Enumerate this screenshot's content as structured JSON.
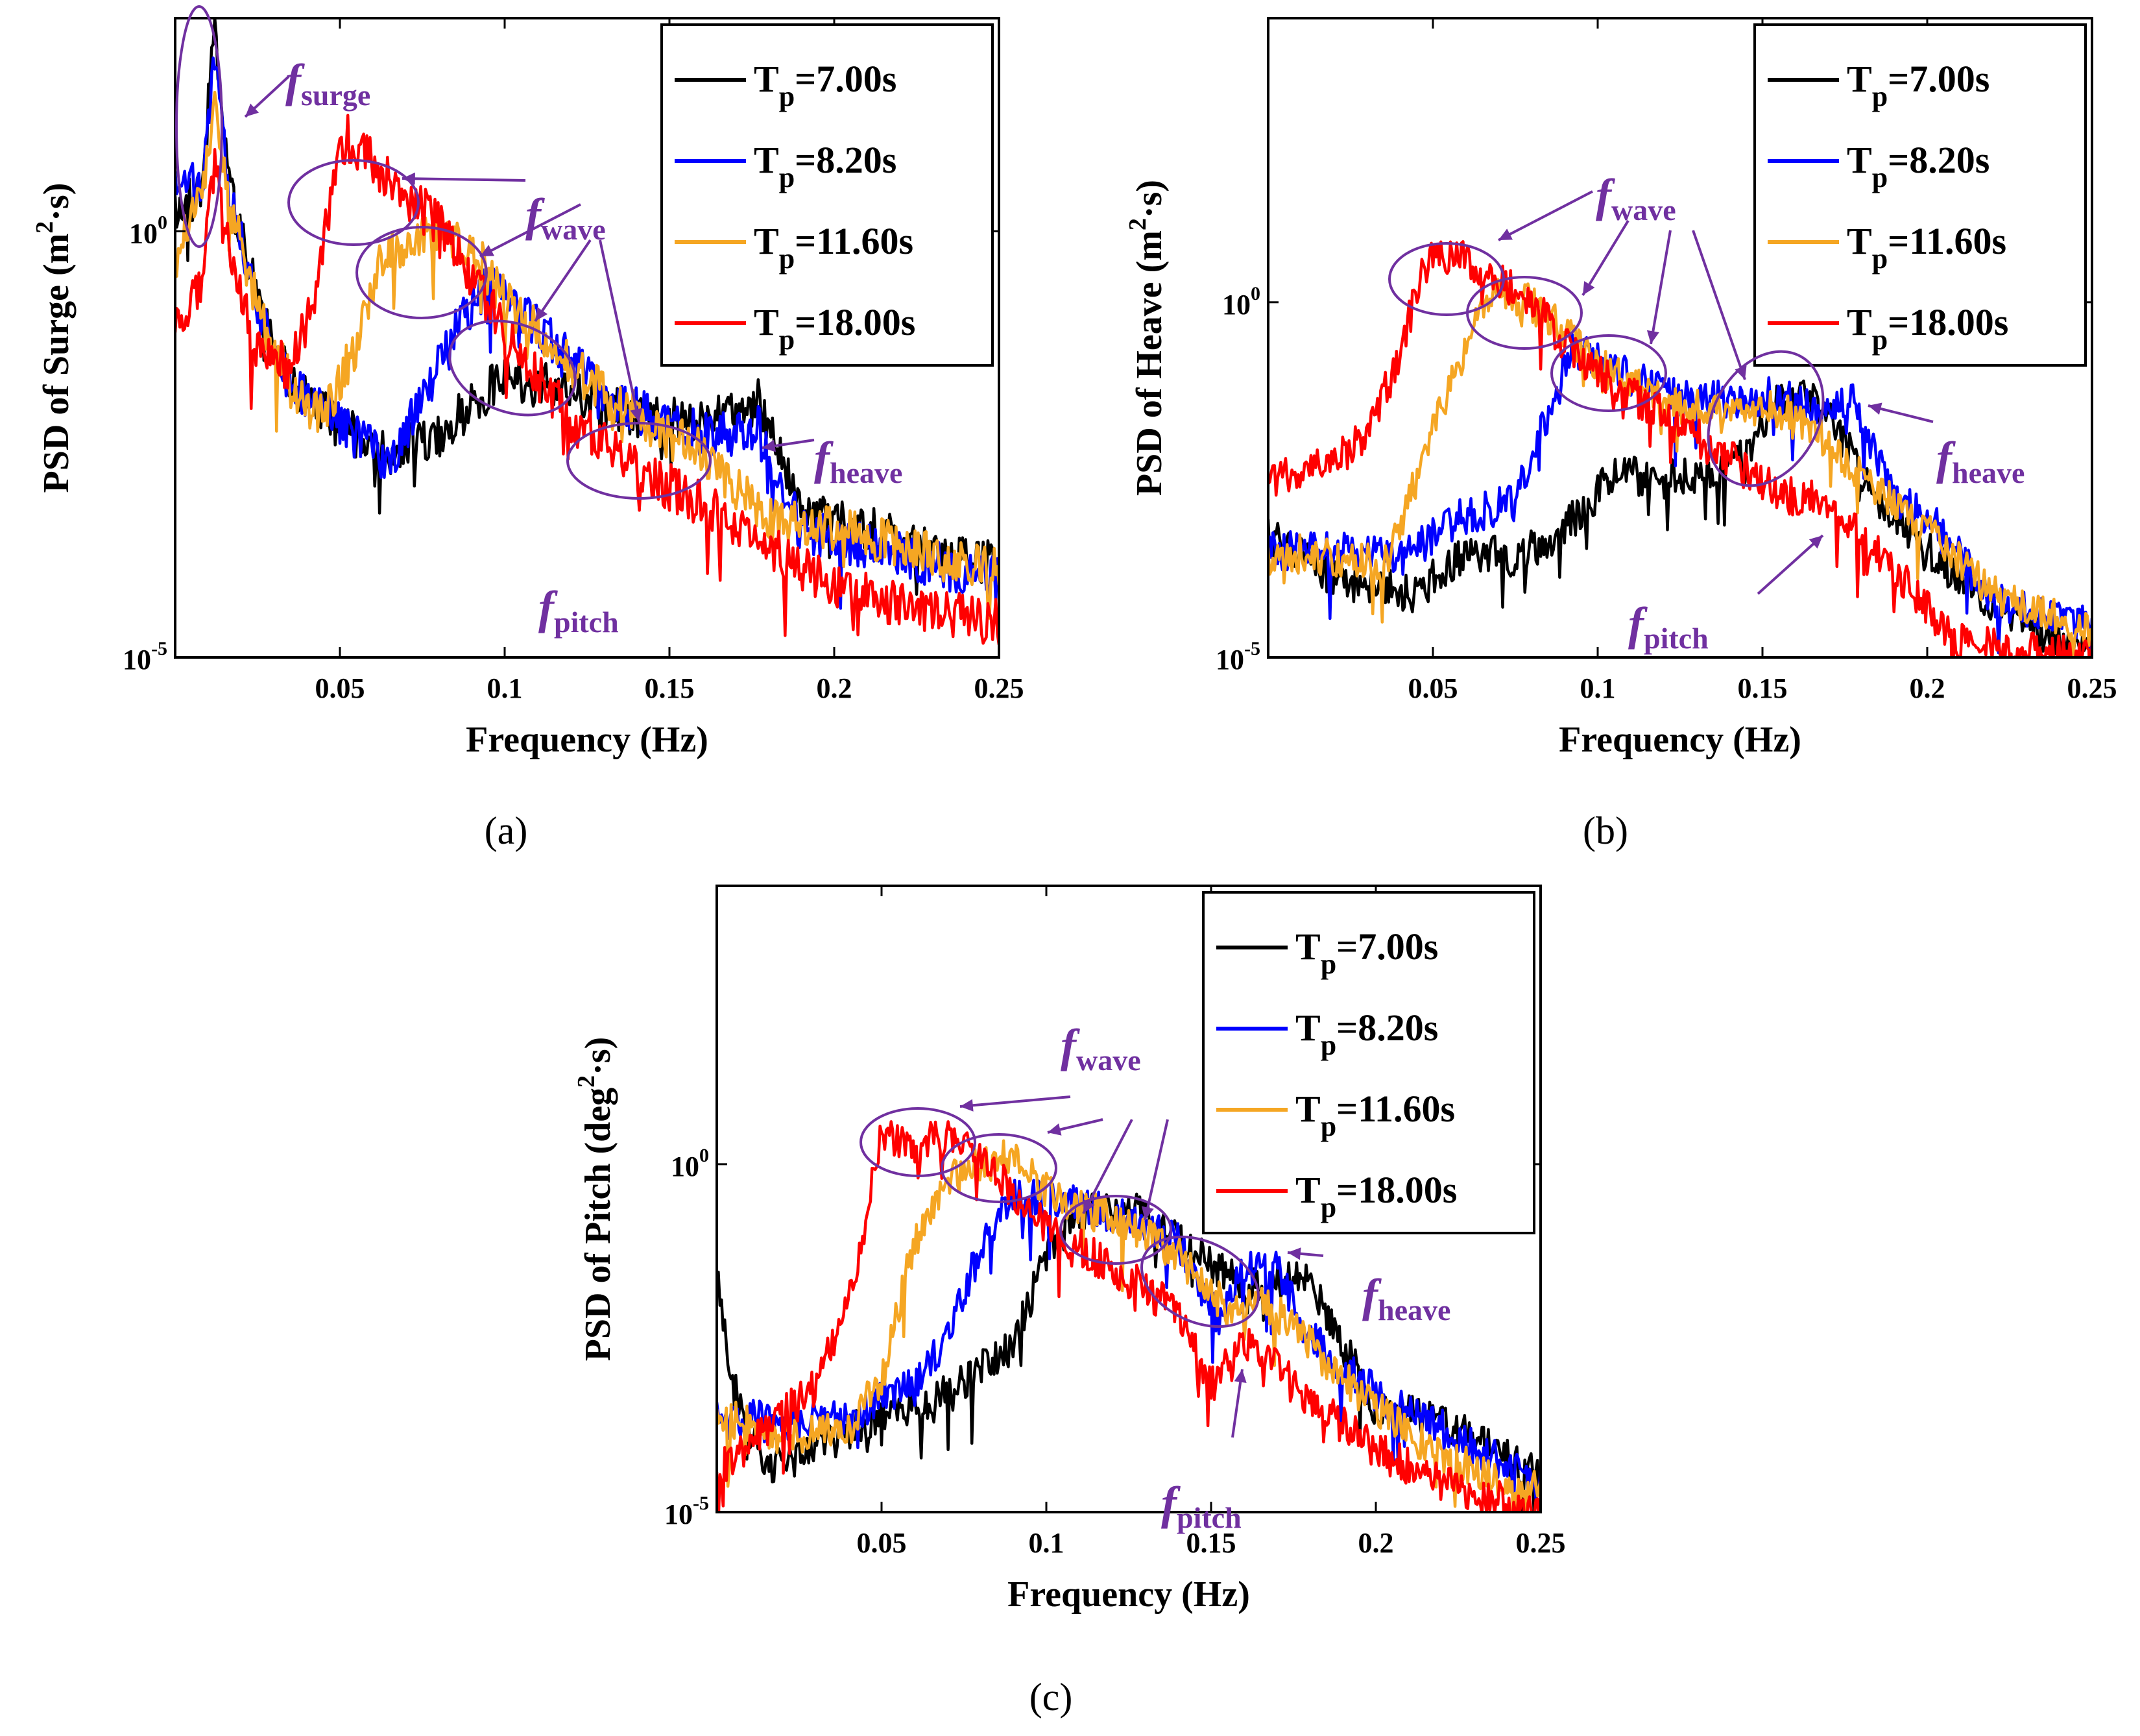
{
  "chart_data": [
    {
      "panel": "(a)",
      "type": "line",
      "title": "",
      "xlabel": "Frequency (Hz)",
      "ylabel": {
        "prefix": "PSD of Surge (m",
        "sup": "2",
        "suffix": "·s)"
      },
      "xlim": [
        0,
        0.25
      ],
      "ylim_exp": [
        -5,
        2.5
      ],
      "xticks": [
        0.05,
        0.1,
        0.15,
        0.2,
        0.25
      ],
      "xtick_labels": [
        "0.05",
        "0.1",
        "0.15",
        "0.2",
        "0.25"
      ],
      "yticks": [
        {
          "exp": 0,
          "base": "10",
          "sup": "0"
        },
        {
          "exp": -5,
          "base": "10",
          "sup": "-5"
        }
      ],
      "legend": {
        "location": "top-right",
        "entries": [
          {
            "label": "T",
            "sub": "p",
            "rest": "=7.00s",
            "color": "#000000"
          },
          {
            "label": "T",
            "sub": "p",
            "rest": "=8.20s",
            "color": "#0000ff"
          },
          {
            "label": "T",
            "sub": "p",
            "rest": "=11.60s",
            "color": "#f5a623"
          },
          {
            "label": "T",
            "sub": "p",
            "rest": "=18.00s",
            "color": "#ff0000"
          }
        ]
      },
      "series": [
        {
          "name": "Tp=7.00s",
          "color": "#000000",
          "x": [
            0,
            0.008,
            0.012,
            0.016,
            0.025,
            0.035,
            0.05,
            0.065,
            0.08,
            0.1,
            0.12,
            0.14,
            0.16,
            0.177,
            0.19,
            0.2,
            0.25
          ],
          "y": [
            0.2,
            0.5,
            2.4,
            0.6,
            -0.8,
            -1.8,
            -2.3,
            -2.6,
            -2.4,
            -1.7,
            -1.9,
            -2.2,
            -2.2,
            -2.0,
            -3.3,
            -3.4,
            -3.9
          ]
        },
        {
          "name": "Tp=8.20s",
          "color": "#0000ff",
          "x": [
            0,
            0.008,
            0.012,
            0.016,
            0.025,
            0.035,
            0.05,
            0.065,
            0.075,
            0.085,
            0.095,
            0.11,
            0.13,
            0.15,
            0.165,
            0.177,
            0.19,
            0.2,
            0.25
          ],
          "y": [
            0.6,
            0.5,
            2.0,
            0.5,
            -0.9,
            -1.8,
            -2.3,
            -2.7,
            -2.0,
            -1.2,
            -0.6,
            -1.1,
            -1.9,
            -2.3,
            -2.4,
            -2.3,
            -3.5,
            -3.6,
            -4.1
          ]
        },
        {
          "name": "Tp=11.60s",
          "color": "#f5a623",
          "x": [
            0,
            0.008,
            0.012,
            0.016,
            0.025,
            0.035,
            0.045,
            0.055,
            0.062,
            0.07,
            0.08,
            0.09,
            0.1,
            0.11,
            0.13,
            0.15,
            0.16,
            0.18,
            0.2,
            0.25
          ],
          "y": [
            -0.3,
            0.4,
            1.6,
            0.4,
            -0.9,
            -1.8,
            -2.2,
            -1.3,
            -0.3,
            -0.1,
            0.0,
            -0.2,
            -0.8,
            -1.2,
            -1.9,
            -2.4,
            -2.6,
            -3.4,
            -3.5,
            -4.0
          ]
        },
        {
          "name": "Tp=18.00s",
          "color": "#ff0000",
          "x": [
            0,
            0.008,
            0.012,
            0.016,
            0.025,
            0.035,
            0.042,
            0.048,
            0.052,
            0.06,
            0.07,
            0.08,
            0.09,
            0.1,
            0.12,
            0.14,
            0.16,
            0.18,
            0.2,
            0.25
          ],
          "y": [
            -1.1,
            -0.6,
            0.8,
            -0.2,
            -1.4,
            -1.6,
            -0.8,
            0.6,
            1.1,
            0.8,
            0.4,
            0.1,
            -0.5,
            -1.2,
            -2.2,
            -2.8,
            -3.2,
            -3.7,
            -4.2,
            -4.6
          ]
        }
      ],
      "annotations": [
        {
          "label": "f",
          "sub": "surge"
        },
        {
          "label": "f",
          "sub": "wave"
        },
        {
          "label": "f",
          "sub": "heave"
        },
        {
          "label": "f",
          "sub": "pitch"
        }
      ]
    },
    {
      "panel": "(b)",
      "type": "line",
      "title": "",
      "xlabel": "Frequency (Hz)",
      "ylabel": {
        "prefix": "PSD of Heave (m",
        "sup": "2",
        "suffix": "·s)"
      },
      "xlim": [
        0,
        0.25
      ],
      "ylim_exp": [
        -5,
        4
      ],
      "xticks": [
        0.05,
        0.1,
        0.15,
        0.2,
        0.25
      ],
      "xtick_labels": [
        "0.05",
        "0.1",
        "0.15",
        "0.2",
        "0.25"
      ],
      "yticks": [
        {
          "exp": 0,
          "base": "10",
          "sup": "0"
        },
        {
          "exp": -5,
          "base": "10",
          "sup": "-5"
        }
      ],
      "legend": {
        "location": "top-right",
        "entries": [
          {
            "label": "T",
            "sub": "p",
            "rest": "=7.00s",
            "color": "#000000"
          },
          {
            "label": "T",
            "sub": "p",
            "rest": "=8.20s",
            "color": "#0000ff"
          },
          {
            "label": "T",
            "sub": "p",
            "rest": "=11.60s",
            "color": "#f5a623"
          },
          {
            "label": "T",
            "sub": "p",
            "rest": "=18.00s",
            "color": "#ff0000"
          }
        ]
      },
      "series": [
        {
          "name": "Tp=7.00s",
          "color": "#000000",
          "x": [
            0,
            0.02,
            0.045,
            0.06,
            0.075,
            0.09,
            0.105,
            0.12,
            0.14,
            0.155,
            0.165,
            0.175,
            0.185,
            0.2,
            0.22,
            0.25
          ],
          "y": [
            -3.3,
            -3.9,
            -4.1,
            -3.5,
            -3.6,
            -3.2,
            -2.4,
            -2.5,
            -2.4,
            -1.4,
            -1.3,
            -2.0,
            -2.8,
            -3.5,
            -4.3,
            -5.0
          ]
        },
        {
          "name": "Tp=8.20s",
          "color": "#0000ff",
          "x": [
            0,
            0.02,
            0.04,
            0.06,
            0.075,
            0.085,
            0.092,
            0.1,
            0.12,
            0.14,
            0.155,
            0.165,
            0.178,
            0.19,
            0.2,
            0.22,
            0.25
          ],
          "y": [
            -3.5,
            -3.5,
            -3.6,
            -3.0,
            -2.8,
            -1.6,
            -0.7,
            -0.8,
            -1.3,
            -1.4,
            -1.3,
            -1.5,
            -1.4,
            -2.8,
            -3.0,
            -4.2,
            -4.5
          ]
        },
        {
          "name": "Tp=11.60s",
          "color": "#f5a623",
          "x": [
            0,
            0.02,
            0.035,
            0.045,
            0.055,
            0.065,
            0.075,
            0.085,
            0.1,
            0.12,
            0.14,
            0.155,
            0.165,
            0.18,
            0.2,
            0.22,
            0.25
          ],
          "y": [
            -3.5,
            -3.6,
            -3.7,
            -2.5,
            -1.2,
            0.0,
            0.1,
            -0.2,
            -0.9,
            -1.4,
            -1.6,
            -1.5,
            -1.8,
            -2.4,
            -3.2,
            -4.1,
            -4.6
          ]
        },
        {
          "name": "Tp=18.00s",
          "color": "#ff0000",
          "x": [
            0,
            0.02,
            0.03,
            0.04,
            0.045,
            0.05,
            0.06,
            0.07,
            0.08,
            0.09,
            0.1,
            0.12,
            0.14,
            0.155,
            0.17,
            0.19,
            0.21,
            0.25
          ],
          "y": [
            -2.5,
            -2.3,
            -1.8,
            -0.8,
            0.2,
            0.6,
            0.6,
            0.3,
            0.0,
            -0.6,
            -1.0,
            -1.6,
            -2.2,
            -2.7,
            -2.8,
            -3.8,
            -4.8,
            -5.0
          ]
        }
      ],
      "annotations": [
        {
          "label": "f",
          "sub": "wave"
        },
        {
          "label": "f",
          "sub": "heave"
        },
        {
          "label": "f",
          "sub": "pitch"
        }
      ]
    },
    {
      "panel": "(c)",
      "type": "line",
      "title": "",
      "xlabel": "Frequency (Hz)",
      "ylabel": {
        "prefix": "PSD of Pitch (deg",
        "sup": "2",
        "suffix": "·s)"
      },
      "xlim": [
        0,
        0.25
      ],
      "ylim_exp": [
        -5,
        4
      ],
      "xticks": [
        0.05,
        0.1,
        0.15,
        0.2,
        0.25
      ],
      "xtick_labels": [
        "0.05",
        "0.1",
        "0.15",
        "0.2",
        "0.25"
      ],
      "yticks": [
        {
          "exp": 0,
          "base": "10",
          "sup": "0"
        },
        {
          "exp": -5,
          "base": "10",
          "sup": "-5"
        }
      ],
      "legend": {
        "location": "top-right",
        "entries": [
          {
            "label": "T",
            "sub": "p",
            "rest": "=7.00s",
            "color": "#000000"
          },
          {
            "label": "T",
            "sub": "p",
            "rest": "=8.20s",
            "color": "#0000ff"
          },
          {
            "label": "T",
            "sub": "p",
            "rest": "=11.60s",
            "color": "#f5a623"
          },
          {
            "label": "T",
            "sub": "p",
            "rest": "=18.00s",
            "color": "#ff0000"
          }
        ]
      },
      "series": [
        {
          "name": "Tp=7.00s",
          "color": "#000000",
          "x": [
            0,
            0.005,
            0.015,
            0.03,
            0.05,
            0.07,
            0.09,
            0.1,
            0.11,
            0.13,
            0.14,
            0.155,
            0.165,
            0.178,
            0.19,
            0.2,
            0.22,
            0.25
          ],
          "y": [
            -1.5,
            -3.2,
            -4.4,
            -4.1,
            -3.6,
            -3.3,
            -2.6,
            -1.3,
            -0.7,
            -0.7,
            -1.1,
            -1.6,
            -1.8,
            -1.5,
            -2.6,
            -3.5,
            -3.7,
            -4.5
          ]
        },
        {
          "name": "Tp=8.20s",
          "color": "#0000ff",
          "x": [
            0,
            0.02,
            0.04,
            0.06,
            0.07,
            0.08,
            0.09,
            0.1,
            0.12,
            0.14,
            0.152,
            0.16,
            0.17,
            0.18,
            0.2,
            0.22,
            0.25
          ],
          "y": [
            -3.6,
            -3.7,
            -3.6,
            -3.2,
            -2.5,
            -1.2,
            -0.4,
            -0.5,
            -0.7,
            -1.1,
            -2.2,
            -1.5,
            -1.5,
            -2.5,
            -3.3,
            -3.8,
            -4.6
          ]
        },
        {
          "name": "Tp=11.60s",
          "color": "#f5a623",
          "x": [
            0,
            0.02,
            0.04,
            0.05,
            0.06,
            0.07,
            0.08,
            0.09,
            0.1,
            0.12,
            0.14,
            0.155,
            0.165,
            0.18,
            0.2,
            0.22,
            0.25
          ],
          "y": [
            -3.6,
            -3.9,
            -3.8,
            -3.1,
            -1.1,
            -0.2,
            0.0,
            0.1,
            -0.4,
            -0.8,
            -1.3,
            -2.1,
            -1.9,
            -2.6,
            -3.5,
            -4.2,
            -4.7
          ]
        },
        {
          "name": "Tp=18.00s",
          "color": "#ff0000",
          "x": [
            0,
            0.02,
            0.03,
            0.04,
            0.045,
            0.05,
            0.06,
            0.07,
            0.08,
            0.09,
            0.1,
            0.12,
            0.14,
            0.15,
            0.16,
            0.18,
            0.2,
            0.22,
            0.25
          ],
          "y": [
            -4.4,
            -3.6,
            -3.2,
            -2.0,
            -0.8,
            0.4,
            0.3,
            0.4,
            0.1,
            -0.4,
            -0.9,
            -1.5,
            -2.1,
            -3.2,
            -2.5,
            -3.4,
            -4.1,
            -4.6,
            -5.0
          ]
        }
      ],
      "annotations": [
        {
          "label": "f",
          "sub": "wave"
        },
        {
          "label": "f",
          "sub": "heave"
        },
        {
          "label": "f",
          "sub": "pitch"
        }
      ]
    }
  ]
}
